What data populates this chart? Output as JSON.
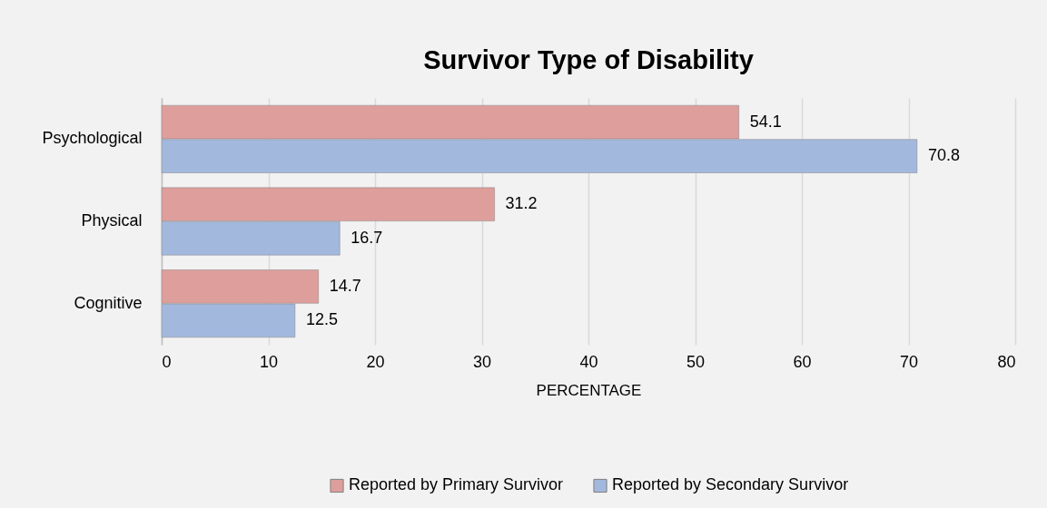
{
  "chart_data": {
    "type": "bar",
    "orientation": "horizontal",
    "title": "Survivor Type of Disability",
    "xlabel": "PERCENTAGE",
    "categories": [
      "Psychological",
      "Physical",
      "Cognitive"
    ],
    "series": [
      {
        "name": "Reported by Primary Survivor",
        "color": "#dd9e9c",
        "values": [
          54.1,
          31.2,
          14.7
        ]
      },
      {
        "name": "Reported by Secondary Survivor",
        "color": "#a3b8dd",
        "values": [
          70.8,
          16.7,
          12.5
        ]
      }
    ],
    "xlim": [
      0,
      80
    ],
    "xticks": [
      0,
      10,
      20,
      30,
      40,
      50,
      60,
      70,
      80
    ],
    "grid": "x",
    "legend": "bottom",
    "data_labels": true
  }
}
